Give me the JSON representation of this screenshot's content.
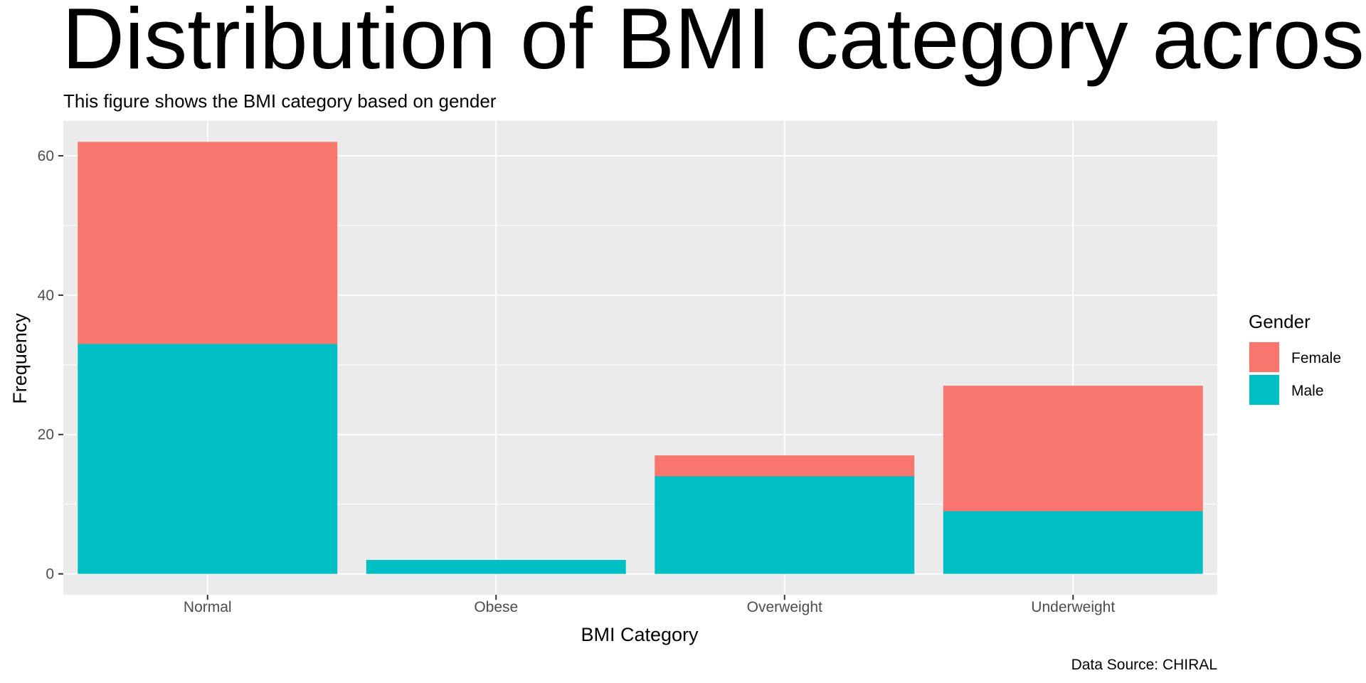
{
  "chart_data": {
    "type": "bar",
    "stacked": true,
    "title": "Distribution of BMI category across Ge",
    "subtitle": "This figure shows the BMI category based on gender",
    "xlabel": "BMI Category",
    "ylabel": "Frequency",
    "caption": "Data Source: CHIRAL",
    "categories": [
      "Normal",
      "Obese",
      "Overweight",
      "Underweight"
    ],
    "series": [
      {
        "name": "Male",
        "color": "#00BFC4",
        "values": [
          33,
          2,
          14,
          9
        ]
      },
      {
        "name": "Female",
        "color": "#F8766D",
        "values": [
          29,
          0,
          3,
          18
        ]
      }
    ],
    "ylim": [
      -3,
      65
    ],
    "yticks": [
      0,
      20,
      40,
      60
    ],
    "grid": true,
    "legend": {
      "title": "Gender",
      "position": "right",
      "order": [
        "Female",
        "Male"
      ]
    },
    "colors": {
      "panel_background": "#EBEBEB",
      "grid": "#FFFFFF"
    }
  }
}
